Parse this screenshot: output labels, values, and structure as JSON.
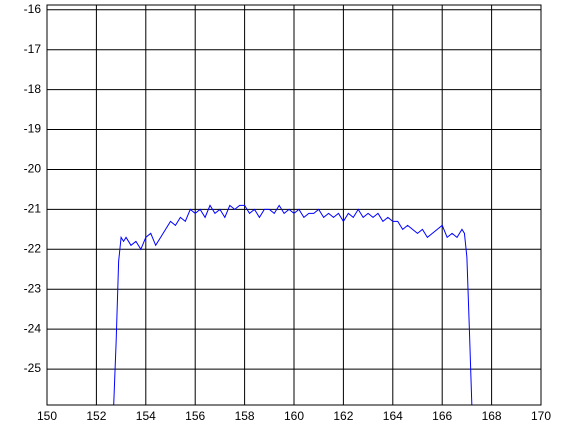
{
  "chart_data": {
    "type": "line",
    "x": [
      152.7,
      152.8,
      152.9,
      153.0,
      153.1,
      153.2,
      153.4,
      153.6,
      153.8,
      154.0,
      154.2,
      154.4,
      154.6,
      154.8,
      155.0,
      155.2,
      155.4,
      155.6,
      155.8,
      156.0,
      156.2,
      156.4,
      156.6,
      156.8,
      157.0,
      157.2,
      157.4,
      157.6,
      157.8,
      158.0,
      158.2,
      158.4,
      158.6,
      158.8,
      159.0,
      159.2,
      159.4,
      159.6,
      159.8,
      160.0,
      160.2,
      160.4,
      160.6,
      160.8,
      161.0,
      161.2,
      161.4,
      161.6,
      161.8,
      162.0,
      162.2,
      162.4,
      162.6,
      162.8,
      163.0,
      163.2,
      163.4,
      163.6,
      163.8,
      164.0,
      164.2,
      164.4,
      164.6,
      164.8,
      165.0,
      165.2,
      165.4,
      165.6,
      165.8,
      166.0,
      166.2,
      166.4,
      166.6,
      166.8,
      166.9,
      167.0,
      167.1,
      167.2
    ],
    "values": [
      -25.9,
      -24.3,
      -22.3,
      -21.7,
      -21.8,
      -21.7,
      -21.9,
      -21.8,
      -22.0,
      -21.7,
      -21.6,
      -21.9,
      -21.7,
      -21.5,
      -21.3,
      -21.4,
      -21.2,
      -21.3,
      -21.0,
      -21.1,
      -21.0,
      -21.2,
      -20.9,
      -21.1,
      -21.0,
      -21.2,
      -20.9,
      -21.0,
      -20.9,
      -20.9,
      -21.1,
      -21.0,
      -21.2,
      -21.0,
      -21.0,
      -21.1,
      -20.9,
      -21.1,
      -21.0,
      -21.1,
      -21.0,
      -21.2,
      -21.1,
      -21.1,
      -21.0,
      -21.2,
      -21.1,
      -21.2,
      -21.1,
      -21.3,
      -21.1,
      -21.2,
      -21.0,
      -21.2,
      -21.1,
      -21.2,
      -21.1,
      -21.3,
      -21.2,
      -21.3,
      -21.3,
      -21.5,
      -21.4,
      -21.5,
      -21.6,
      -21.5,
      -21.7,
      -21.6,
      -21.5,
      -21.4,
      -21.7,
      -21.6,
      -21.7,
      -21.5,
      -21.6,
      -22.2,
      -24.0,
      -25.9
    ],
    "color": "#0000ff",
    "xlim": [
      150,
      170
    ],
    "xticks": [
      150,
      152,
      154,
      156,
      158,
      160,
      162,
      164,
      166,
      168,
      170
    ],
    "ylim": [
      -25.9,
      -15.88
    ],
    "yticks": [
      -25,
      -24,
      -23,
      -22,
      -21,
      -20,
      -19,
      -18,
      -17,
      -16
    ],
    "grid": true
  }
}
